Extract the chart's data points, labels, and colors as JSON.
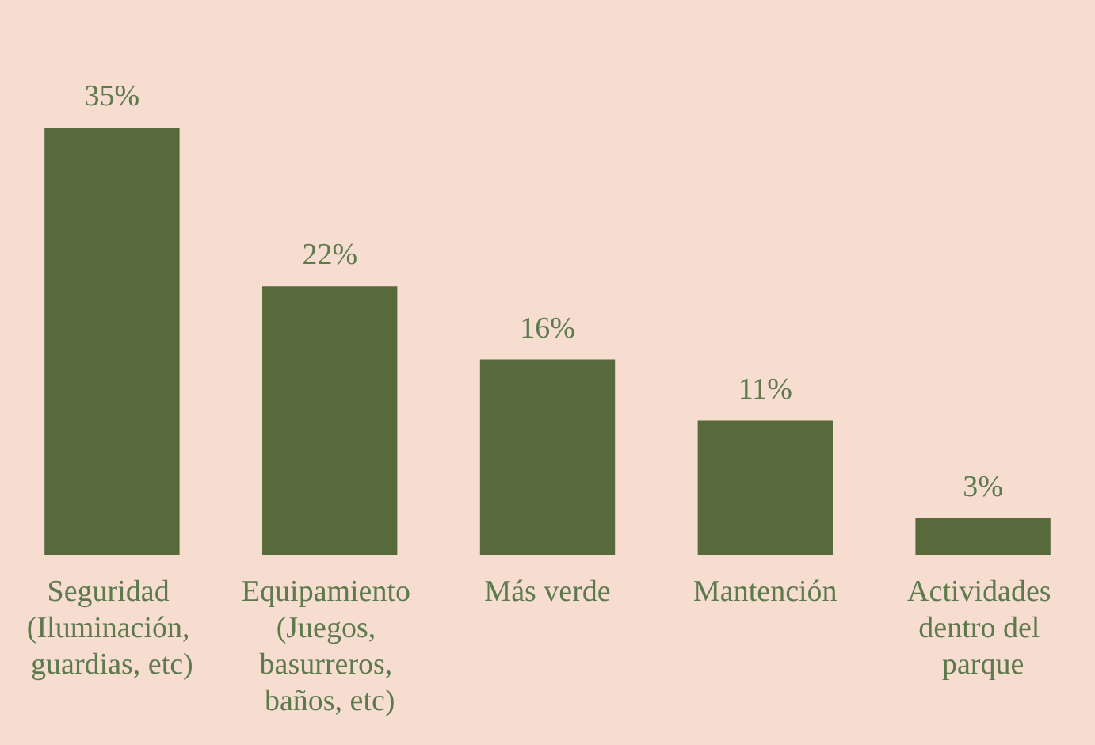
{
  "chart_data": {
    "type": "bar",
    "categories": [
      "Seguridad (Iluminación, guardias, etc)",
      "Equipamiento (Juegos, basurreros, baños, etc)",
      "Más verde",
      "Mantención",
      "Actividades dentro del parque"
    ],
    "values": [
      35,
      22,
      16,
      11,
      3
    ],
    "value_labels": [
      "35%",
      "22%",
      "16%",
      "11%",
      "3%"
    ],
    "color": "#58693b",
    "grid": false,
    "tick_labels": "x"
  }
}
